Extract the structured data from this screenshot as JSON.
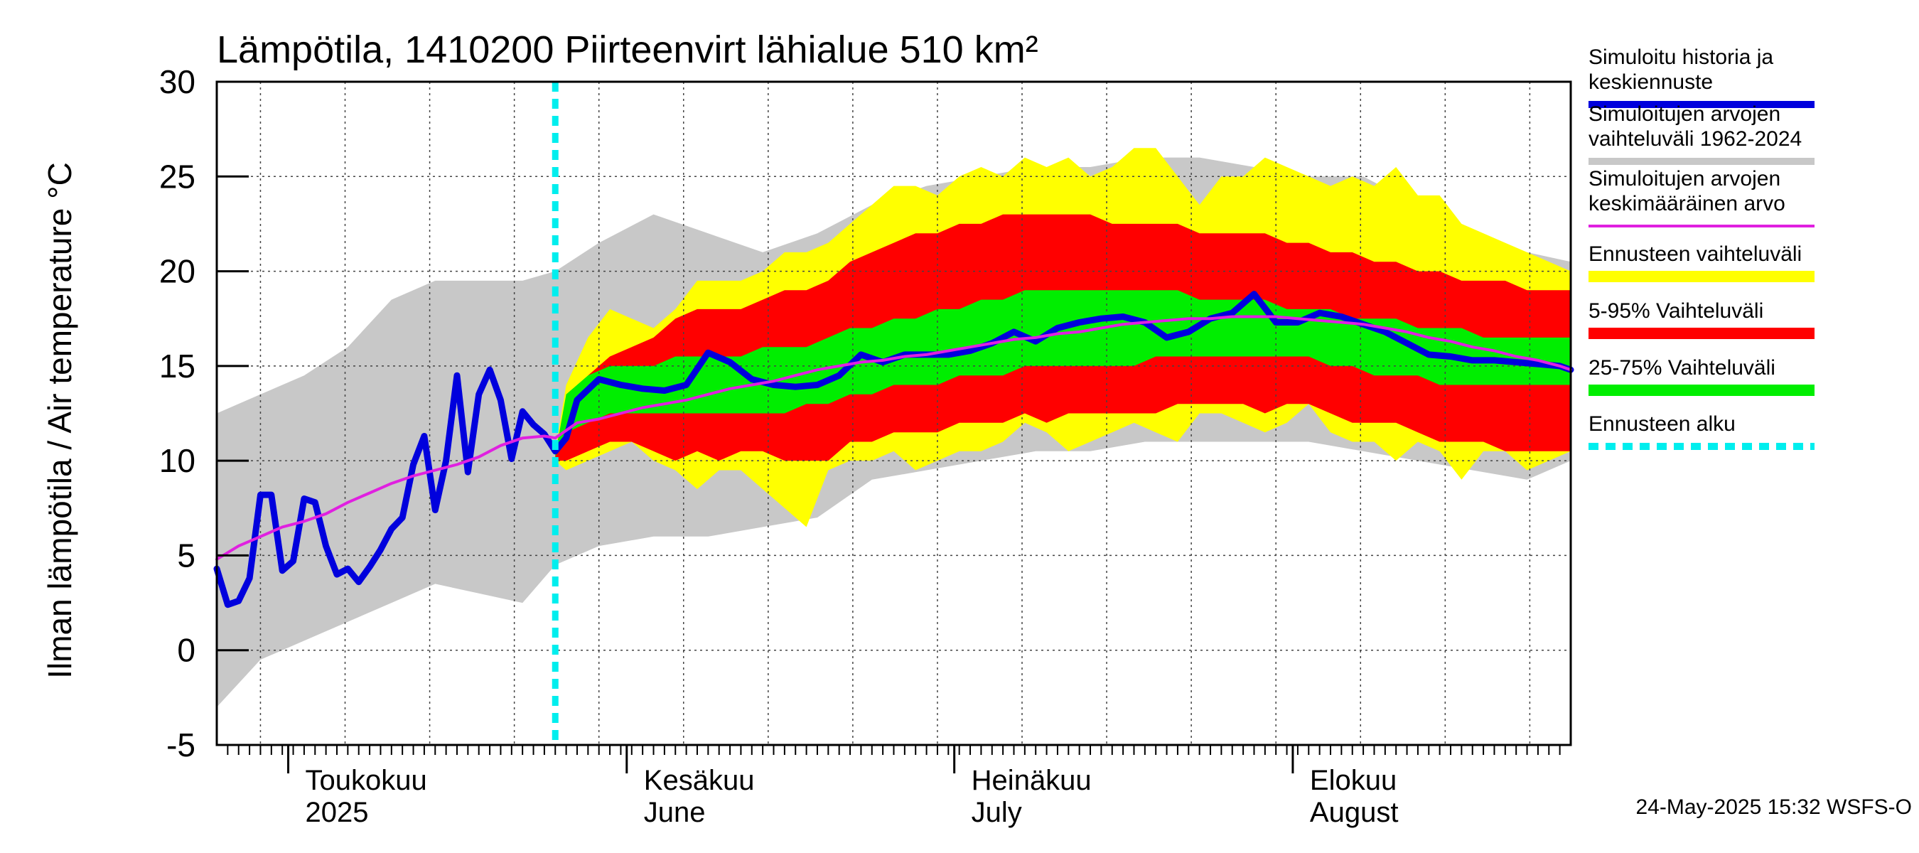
{
  "chart_data": {
    "type": "area",
    "title": "Lämpötila, 1410200 Piirteenvirt lähialue 510 km²",
    "ylabel": "Ilman lämpötila / Air temperature   °C",
    "ylim": [
      -5,
      30
    ],
    "yticks": [
      -5,
      0,
      5,
      10,
      15,
      20,
      25,
      30
    ],
    "x_range_days": [
      0,
      124
    ],
    "forecast_start_day": 31,
    "months": [
      {
        "label": "Toukokuu",
        "sub": "2025",
        "day": 7
      },
      {
        "label": "Kesäkuu",
        "sub": "June",
        "day": 38
      },
      {
        "label": "Heinäkuu",
        "sub": "July",
        "day": 68
      },
      {
        "label": "Elokuu",
        "sub": "August",
        "day": 99
      }
    ],
    "legend": [
      {
        "label": "Simuloitu historia ja keskiennuste",
        "color": "#0000dd",
        "style": "solid"
      },
      {
        "label": "Simuloitujen arvojen vaihteluväli 1962-2024",
        "color": "#c8c8c8",
        "style": "solid"
      },
      {
        "label": "Simuloitujen arvojen keskimääräinen arvo",
        "color": "#e020e0",
        "style": "solid"
      },
      {
        "label": "Ennusteen vaihteluväli",
        "color": "#ffff00",
        "style": "solid"
      },
      {
        "label": "5-95% Vaihteluväli",
        "color": "#ff0000",
        "style": "solid"
      },
      {
        "label": "25-75% Vaihteluväli",
        "color": "#00ee00",
        "style": "solid"
      },
      {
        "label": "Ennusteen alku",
        "color": "#00eeee",
        "style": "dashed"
      }
    ],
    "footer": "24-May-2025 15:32 WSFS-O",
    "series": {
      "hist_range": {
        "x": [
          0,
          4,
          8,
          12,
          16,
          20,
          24,
          28,
          31,
          35,
          40,
          45,
          50,
          55,
          60,
          65,
          70,
          75,
          80,
          85,
          90,
          95,
          100,
          105,
          110,
          115,
          120,
          124
        ],
        "lo": [
          -3,
          -0.5,
          0.5,
          1.5,
          2.5,
          3.5,
          3,
          2.5,
          4.5,
          5.5,
          6,
          6,
          6.5,
          7,
          9,
          9.5,
          10,
          10.5,
          10.5,
          11,
          11,
          11,
          11,
          10.5,
          10,
          9.5,
          9,
          10
        ],
        "hi": [
          12.5,
          13.5,
          14.5,
          16,
          18.5,
          19.5,
          19.5,
          19.5,
          20,
          21.5,
          23,
          22,
          21,
          22,
          23.5,
          24.5,
          25,
          25.5,
          25.5,
          26,
          26,
          25.5,
          25,
          25,
          23.5,
          22,
          21,
          20.5
        ]
      },
      "ens_range": {
        "x": [
          31,
          32,
          34,
          36,
          38,
          40,
          42,
          44,
          46,
          48,
          50,
          52,
          54,
          56,
          58,
          60,
          62,
          64,
          66,
          68,
          70,
          72,
          74,
          76,
          78,
          80,
          82,
          84,
          86,
          88,
          90,
          92,
          94,
          96,
          98,
          100,
          102,
          104,
          106,
          108,
          110,
          112,
          114,
          116,
          118,
          120,
          122,
          124
        ],
        "lo": [
          10,
          9.5,
          10,
          10.5,
          11,
          10,
          9.5,
          8.5,
          9.5,
          9.5,
          8.5,
          7.5,
          6.5,
          9.5,
          10,
          10,
          10.5,
          9.5,
          10,
          10.5,
          10.5,
          11,
          12,
          11.5,
          10.5,
          11,
          11.5,
          12,
          11.5,
          11,
          12.5,
          12.5,
          12,
          11.5,
          12,
          13,
          11.5,
          11,
          11,
          10,
          11,
          10.5,
          9,
          10.5,
          10.5,
          9.5,
          10,
          10.5
        ],
        "hi": [
          10.5,
          14,
          16.5,
          18,
          17.5,
          17,
          18,
          19.5,
          19.5,
          19.5,
          20,
          21,
          21,
          21.5,
          22.5,
          23.5,
          24.5,
          24.5,
          24,
          25,
          25.5,
          25,
          26,
          25.5,
          26,
          25,
          25.5,
          26.5,
          26.5,
          25,
          23.5,
          25,
          25,
          26,
          25.5,
          25,
          24.5,
          25,
          24.5,
          25.5,
          24,
          24,
          22.5,
          22,
          21.5,
          21,
          20.5,
          20
        ]
      },
      "p5_95": {
        "x": [
          31,
          32,
          34,
          36,
          38,
          40,
          42,
          44,
          46,
          48,
          50,
          52,
          54,
          56,
          58,
          60,
          62,
          64,
          66,
          68,
          70,
          72,
          74,
          76,
          78,
          80,
          82,
          84,
          86,
          88,
          90,
          92,
          94,
          96,
          98,
          100,
          102,
          104,
          106,
          108,
          110,
          112,
          114,
          116,
          118,
          120,
          122,
          124
        ],
        "lo": [
          10,
          10,
          10.5,
          11,
          11,
          10.5,
          10,
          10.5,
          10,
          10.5,
          10.5,
          10,
          10,
          10,
          11,
          11,
          11.5,
          11.5,
          11.5,
          12,
          12,
          12,
          12.5,
          12,
          12.5,
          12.5,
          12.5,
          12.5,
          12.5,
          13,
          13,
          13,
          13,
          12.5,
          13,
          13,
          12.5,
          12,
          12,
          12,
          11.5,
          11,
          11,
          11,
          10.5,
          10.5,
          10.5,
          10.5
        ],
        "hi": [
          10.5,
          13,
          14.5,
          15.5,
          16,
          16.5,
          17.5,
          18,
          18,
          18,
          18.5,
          19,
          19,
          19.5,
          20.5,
          21,
          21.5,
          22,
          22,
          22.5,
          22.5,
          23,
          23,
          23,
          23,
          23,
          22.5,
          22.5,
          22.5,
          22.5,
          22,
          22,
          22,
          22,
          21.5,
          21.5,
          21,
          21,
          20.5,
          20.5,
          20,
          20,
          19.5,
          19.5,
          19.5,
          19,
          19,
          19
        ]
      },
      "p25_75": {
        "x": [
          31,
          32,
          34,
          36,
          38,
          40,
          42,
          44,
          46,
          48,
          50,
          52,
          54,
          56,
          58,
          60,
          62,
          64,
          66,
          68,
          70,
          72,
          74,
          76,
          78,
          80,
          82,
          84,
          86,
          88,
          90,
          92,
          94,
          96,
          98,
          100,
          102,
          104,
          106,
          108,
          110,
          112,
          114,
          116,
          118,
          120,
          122,
          124
        ],
        "lo": [
          10.2,
          11.5,
          12,
          12.5,
          12.5,
          12.5,
          12.5,
          12.5,
          12.5,
          12.5,
          12.5,
          12.5,
          13,
          13,
          13.5,
          13.5,
          14,
          14,
          14,
          14.5,
          14.5,
          14.5,
          15,
          15,
          15,
          15,
          15,
          15,
          15.5,
          15.5,
          15.5,
          15.5,
          15.5,
          15.5,
          15.5,
          15.5,
          15,
          15,
          14.5,
          14.5,
          14.5,
          14,
          14,
          14,
          14,
          14,
          14,
          14
        ],
        "hi": [
          10.3,
          13.5,
          14.5,
          15,
          15,
          15,
          15.5,
          15.5,
          15.5,
          15.5,
          16,
          16,
          16,
          16.5,
          17,
          17,
          17.5,
          17.5,
          18,
          18,
          18.5,
          18.5,
          19,
          19,
          19,
          19,
          19,
          19,
          19,
          19,
          18.5,
          18.5,
          18.5,
          18.5,
          18,
          18,
          18,
          17.5,
          17.5,
          17.5,
          17,
          17,
          17,
          16.5,
          16.5,
          16.5,
          16.5,
          16.5
        ]
      },
      "mean_sim": {
        "x": [
          0,
          2,
          4,
          6,
          8,
          10,
          12,
          14,
          16,
          18,
          20,
          22,
          24,
          26,
          28,
          30,
          31,
          33,
          35,
          37,
          39,
          41,
          43,
          45,
          47,
          49,
          51,
          53,
          55,
          57,
          59,
          61,
          63,
          65,
          67,
          69,
          71,
          73,
          75,
          77,
          79,
          81,
          83,
          85,
          87,
          89,
          91,
          93,
          95,
          97,
          99,
          101,
          103,
          105,
          107,
          109,
          111,
          113,
          115,
          117,
          119,
          121,
          123,
          124
        ],
        "y": [
          4.8,
          5.5,
          6,
          6.5,
          6.8,
          7.2,
          7.8,
          8.3,
          8.8,
          9.2,
          9.5,
          9.8,
          10.2,
          10.8,
          11.2,
          11.3,
          11.2,
          12,
          12.2,
          12.5,
          12.8,
          13,
          13.2,
          13.5,
          13.8,
          14,
          14.2,
          14.5,
          14.8,
          15,
          15.2,
          15.3,
          15.5,
          15.6,
          15.8,
          16,
          16.2,
          16.4,
          16.5,
          16.7,
          16.8,
          17,
          17.2,
          17.3,
          17.4,
          17.5,
          17.5,
          17.6,
          17.6,
          17.6,
          17.5,
          17.4,
          17.3,
          17.2,
          17,
          16.8,
          16.5,
          16.3,
          16,
          15.8,
          15.5,
          15.3,
          15,
          14.8
        ]
      },
      "sim_mean": {
        "x": [
          0,
          1,
          2,
          3,
          4,
          5,
          6,
          7,
          8,
          9,
          10,
          11,
          12,
          13,
          14,
          15,
          16,
          17,
          18,
          19,
          20,
          21,
          22,
          23,
          24,
          25,
          26,
          27,
          28,
          29,
          30,
          31,
          32,
          33,
          35,
          37,
          39,
          41,
          43,
          45,
          47,
          49,
          51,
          53,
          55,
          57,
          59,
          61,
          63,
          65,
          67,
          69,
          71,
          73,
          75,
          77,
          79,
          81,
          83,
          85,
          87,
          89,
          91,
          93,
          95,
          97,
          99,
          101,
          103,
          105,
          107,
          109,
          111,
          113,
          115,
          117,
          119,
          121,
          123,
          124
        ],
        "y": [
          4.3,
          2.4,
          2.6,
          3.8,
          8.2,
          8.2,
          4.2,
          4.7,
          8.0,
          7.8,
          5.5,
          4.0,
          4.3,
          3.6,
          4.4,
          5.3,
          6.4,
          7.0,
          9.8,
          11.3,
          7.4,
          10.0,
          14.5,
          9.4,
          13.5,
          14.8,
          13.2,
          10.1,
          12.6,
          11.9,
          11.4,
          10.5,
          11.2,
          13.2,
          14.3,
          14.0,
          13.8,
          13.7,
          14.0,
          15.7,
          15.2,
          14.3,
          14.0,
          13.9,
          14.0,
          14.5,
          15.6,
          15.2,
          15.6,
          15.6,
          15.6,
          15.8,
          16.2,
          16.8,
          16.3,
          17.0,
          17.3,
          17.5,
          17.6,
          17.3,
          16.5,
          16.8,
          17.5,
          17.8,
          18.8,
          17.3,
          17.3,
          17.8,
          17.6,
          17.2,
          16.8,
          16.2,
          15.6,
          15.5,
          15.3,
          15.3,
          15.2,
          15.1,
          15.0,
          14.8
        ]
      }
    }
  }
}
